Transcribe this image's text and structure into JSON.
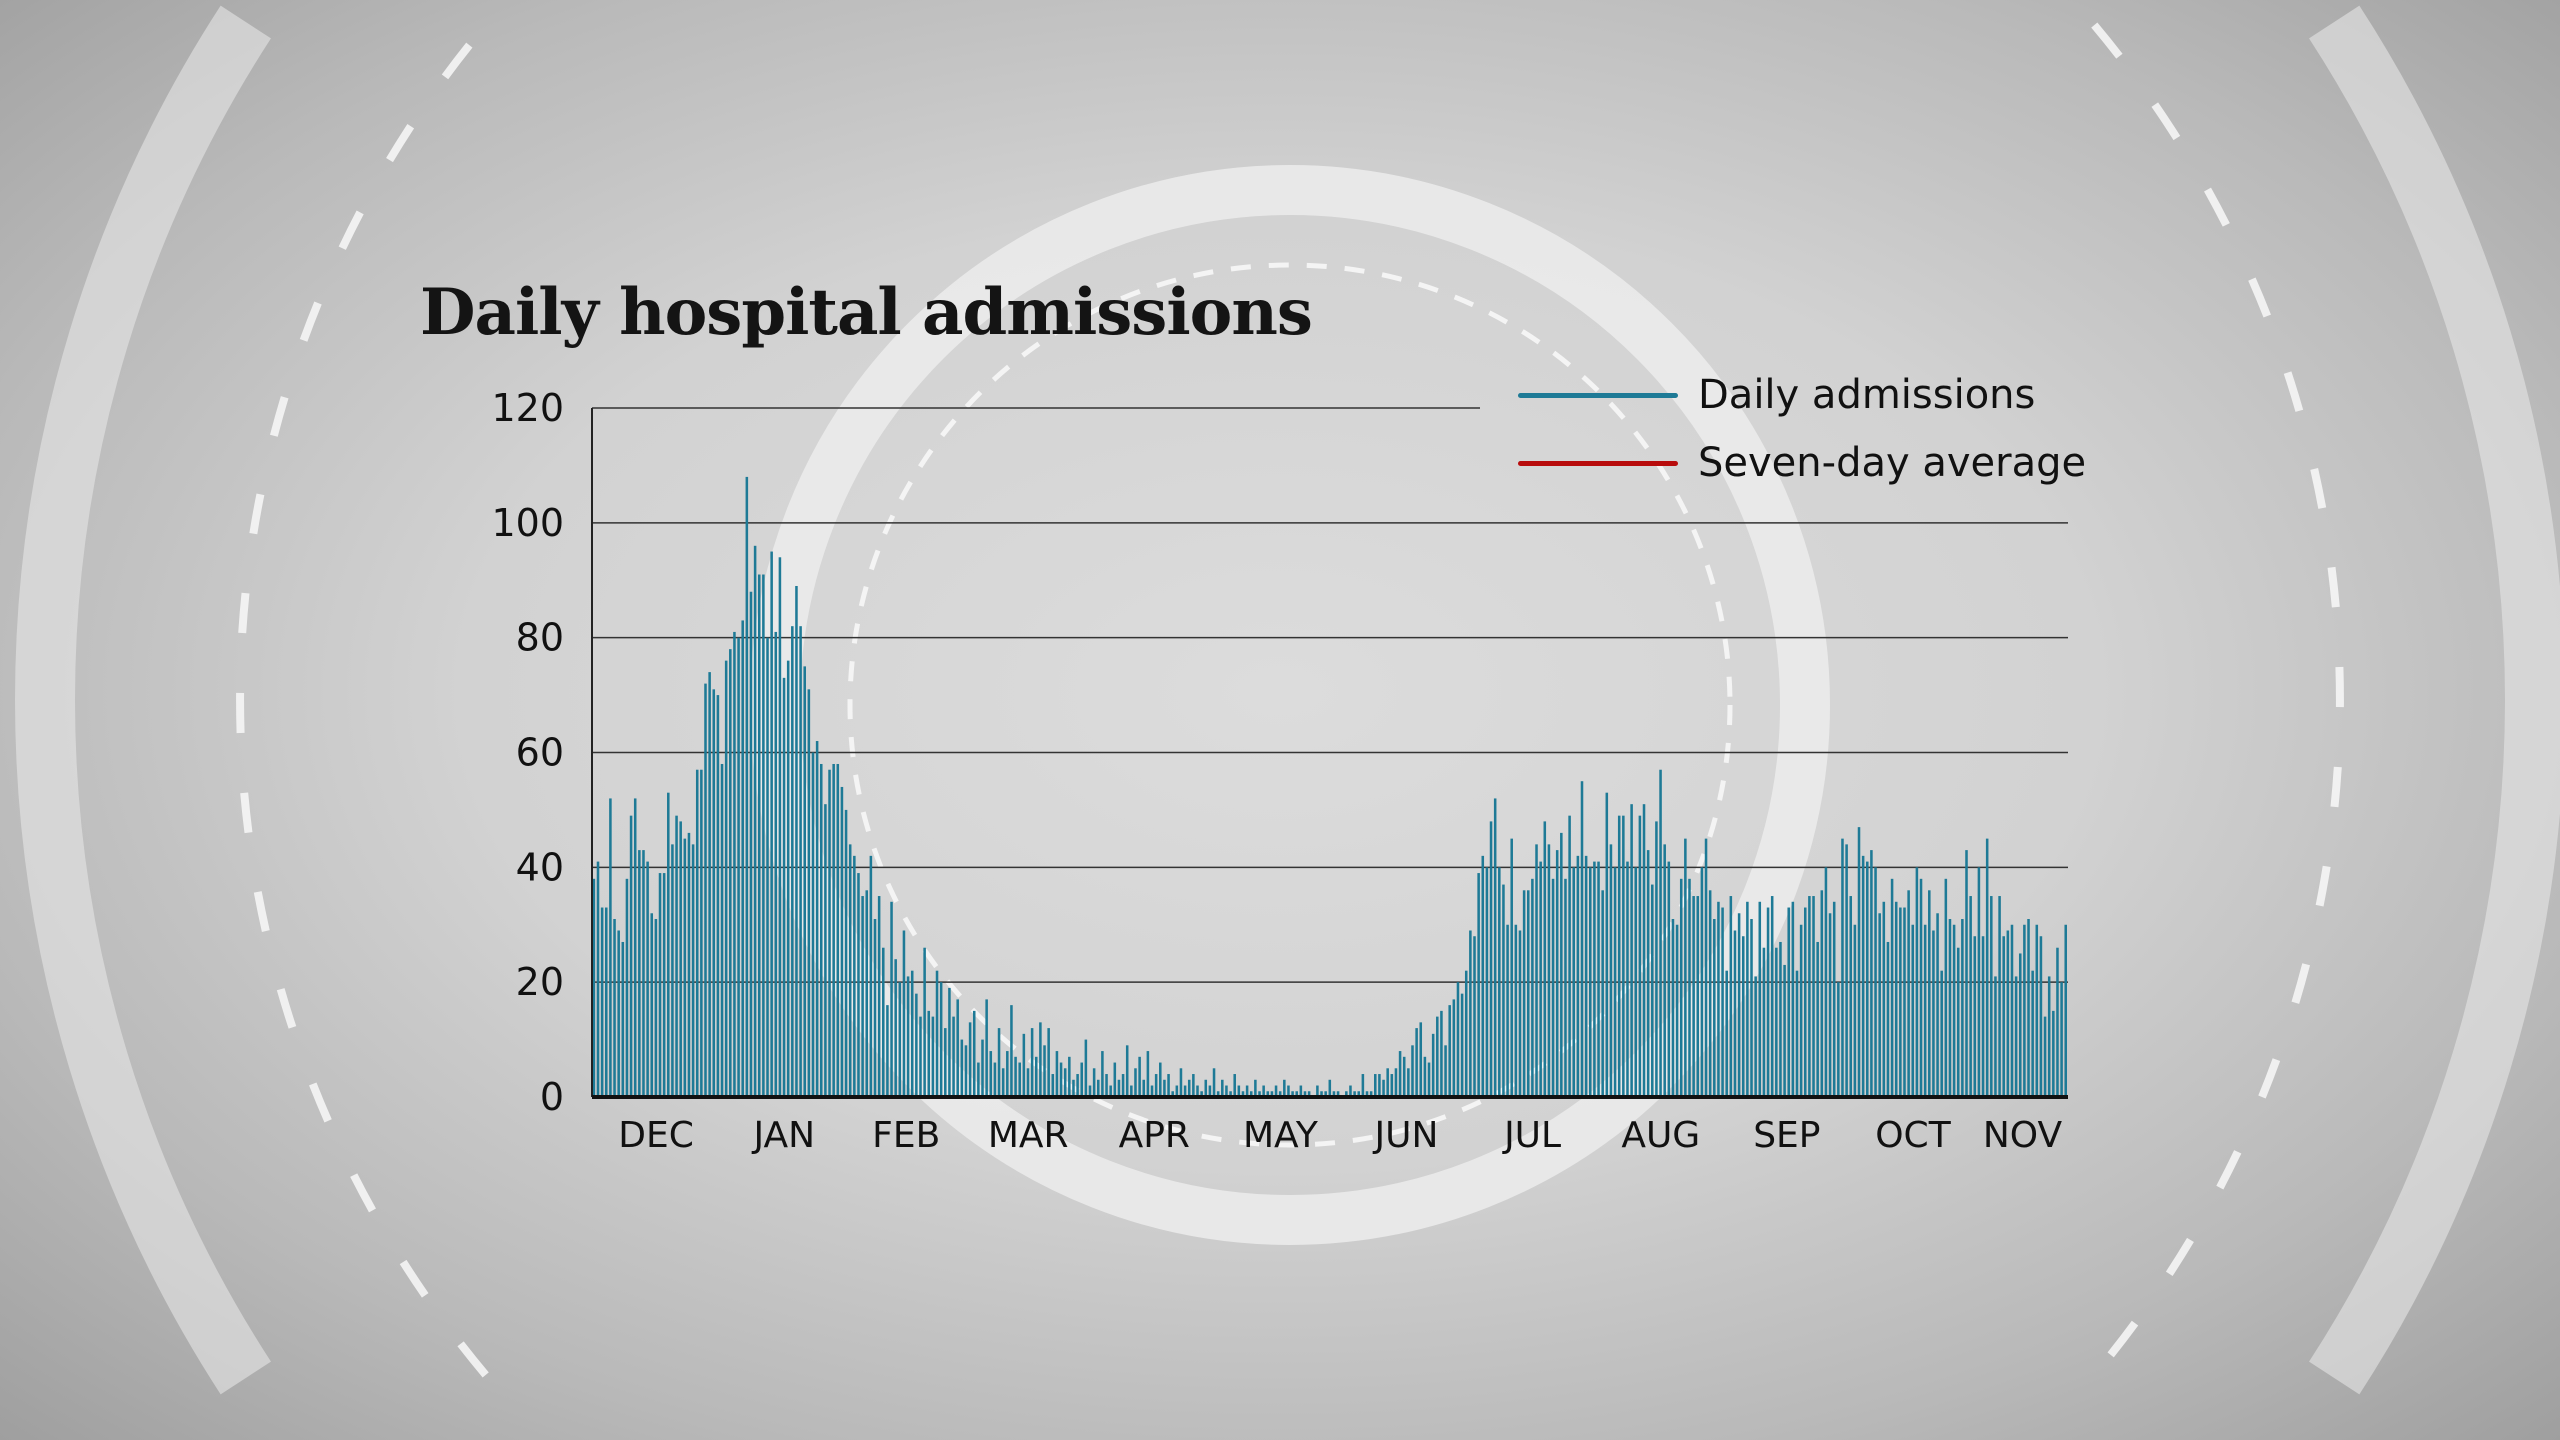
{
  "chart_data": {
    "type": "bar",
    "title": "Daily hospital admissions",
    "xlabel": "",
    "ylabel": "",
    "ylim": [
      0,
      120
    ],
    "yticks": [
      0,
      20,
      40,
      60,
      80,
      100,
      120
    ],
    "months": [
      "DEC",
      "JAN",
      "FEB",
      "MAR",
      "APR",
      "MAY",
      "JUN",
      "JUL",
      "AUG",
      "SEP",
      "OCT",
      "NOV"
    ],
    "grid": true,
    "legend_position": "top-right",
    "legend": [
      {
        "label": "Daily admissions",
        "color": "#1e7a96"
      },
      {
        "label": "Seven-day average",
        "color": "#b80c0c"
      }
    ],
    "series": [
      {
        "name": "Daily admissions",
        "color": "#1e7a96",
        "values_by_month": [
          [
            38,
            41,
            33,
            33,
            52,
            31,
            29,
            27,
            38,
            49,
            52,
            43,
            43,
            41,
            32,
            31,
            39,
            39,
            53,
            44,
            49,
            48,
            45,
            46,
            44,
            57,
            57,
            72,
            74,
            71,
            70
          ],
          [
            58,
            76,
            78,
            81,
            80,
            83,
            108,
            88,
            96,
            91,
            91,
            80,
            95,
            81,
            94,
            73,
            76,
            82,
            89,
            82,
            75,
            71,
            60,
            62,
            58,
            51,
            57,
            58,
            58,
            54,
            50
          ],
          [
            44,
            42,
            39,
            35,
            36,
            42,
            31,
            35,
            26,
            16,
            34,
            24,
            20,
            29,
            21,
            22,
            18,
            14,
            26,
            15,
            14,
            22,
            20,
            12,
            19,
            14,
            17,
            10
          ],
          [
            9,
            13,
            15,
            6,
            10,
            17,
            8,
            6,
            12,
            5,
            8,
            16,
            7,
            6,
            11,
            5,
            12,
            7,
            13,
            9,
            12,
            4,
            8,
            6,
            5,
            7,
            3,
            4,
            6,
            10,
            2
          ],
          [
            5,
            3,
            8,
            4,
            2,
            6,
            3,
            4,
            9,
            2,
            5,
            7,
            3,
            8,
            2,
            4,
            6,
            3,
            4,
            1,
            2,
            5,
            2,
            3,
            4,
            2,
            1,
            3,
            2,
            5
          ],
          [
            1,
            3,
            2,
            1,
            4,
            2,
            1,
            2,
            1,
            3,
            1,
            2,
            1,
            1,
            2,
            1,
            3,
            2,
            1,
            1,
            2,
            1,
            1,
            0,
            2,
            1,
            1,
            3,
            1,
            1,
            0
          ],
          [
            1,
            2,
            1,
            1,
            4,
            1,
            1,
            4,
            4,
            3,
            5,
            4,
            5,
            8,
            7,
            5,
            9,
            12,
            13,
            7,
            6,
            11,
            14,
            15,
            9,
            16,
            17,
            20,
            18,
            22
          ],
          [
            29,
            28,
            39,
            42,
            40,
            48,
            52,
            40,
            37,
            30,
            45,
            30,
            29,
            36,
            36,
            38,
            44,
            41,
            48,
            44,
            38,
            43,
            46,
            38,
            49,
            40,
            42,
            55,
            42,
            40,
            41
          ],
          [
            41,
            36,
            53,
            44,
            40,
            49,
            49,
            41,
            51,
            40,
            49,
            51,
            43,
            37,
            48,
            57,
            44,
            41,
            31,
            30,
            38,
            45,
            38,
            35,
            35,
            40,
            45,
            36,
            31,
            34,
            33
          ],
          [
            22,
            35,
            29,
            32,
            28,
            34,
            31,
            21,
            34,
            26,
            33,
            35,
            26,
            27,
            23,
            33,
            34,
            22,
            30,
            33,
            35,
            35,
            27,
            36,
            40,
            32,
            34,
            20,
            45,
            44
          ],
          [
            35,
            30,
            47,
            42,
            41,
            43,
            40,
            32,
            34,
            27,
            38,
            34,
            33,
            33,
            36,
            30,
            40,
            38,
            30,
            36,
            29,
            32,
            22,
            38,
            31,
            30,
            26,
            31,
            43,
            35,
            28
          ],
          [
            40,
            28,
            45,
            35,
            21,
            35,
            28,
            29,
            30,
            21,
            25,
            30,
            31,
            22,
            30,
            28,
            14,
            21,
            15,
            26,
            20,
            30
          ]
        ]
      }
    ]
  }
}
